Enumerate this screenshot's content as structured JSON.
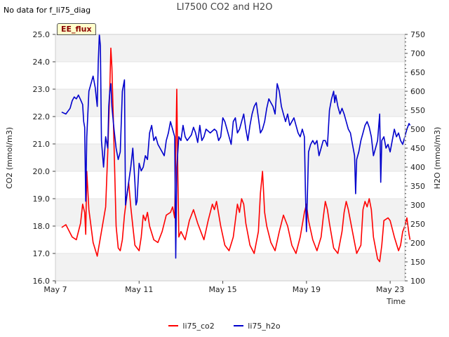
{
  "header": {
    "status_text": "No data for f_li75_diag",
    "title": "LI7500 CO2 and H2O",
    "badge": "EE_flux"
  },
  "chart_data": {
    "type": "line",
    "title": "LI7500 CO2 and H2O",
    "xlabel": "Time",
    "ylabel_left": "CO2 (mmol/m3)",
    "ylabel_right": "H2O (mmol/m3)",
    "x_range_days": [
      7,
      23.7
    ],
    "ylim_left": [
      16.0,
      25.0
    ],
    "ylim_right": [
      100,
      750
    ],
    "x_ticks": [
      {
        "label": "May 7",
        "day": 7
      },
      {
        "label": "May 11",
        "day": 11
      },
      {
        "label": "May 15",
        "day": 15
      },
      {
        "label": "May 19",
        "day": 19
      },
      {
        "label": "May 23",
        "day": 23
      }
    ],
    "y_ticks_left": [
      "16.0",
      "17.0",
      "18.0",
      "19.0",
      "20.0",
      "21.0",
      "22.0",
      "23.0",
      "24.0",
      "25.0"
    ],
    "y_ticks_right": [
      "100",
      "150",
      "200",
      "250",
      "300",
      "350",
      "400",
      "450",
      "500",
      "550",
      "600",
      "650",
      "700",
      "750"
    ],
    "series": [
      {
        "name": "li75_co2",
        "axis": "left",
        "color": "#ff0000",
        "points": [
          [
            7.3,
            17.95
          ],
          [
            7.5,
            18.05
          ],
          [
            7.6,
            17.9
          ],
          [
            7.8,
            17.6
          ],
          [
            8.0,
            17.5
          ],
          [
            8.2,
            18.1
          ],
          [
            8.3,
            18.8
          ],
          [
            8.4,
            18.5
          ],
          [
            8.45,
            17.7
          ],
          [
            8.5,
            20.0
          ],
          [
            8.6,
            18.6
          ],
          [
            8.8,
            17.4
          ],
          [
            9.0,
            16.9
          ],
          [
            9.2,
            17.8
          ],
          [
            9.4,
            18.7
          ],
          [
            9.5,
            20.7
          ],
          [
            9.6,
            23.0
          ],
          [
            9.65,
            24.5
          ],
          [
            9.7,
            23.8
          ],
          [
            9.8,
            21.0
          ],
          [
            9.9,
            18.0
          ],
          [
            10.0,
            17.2
          ],
          [
            10.1,
            17.1
          ],
          [
            10.2,
            17.5
          ],
          [
            10.3,
            18.4
          ],
          [
            10.4,
            19.0
          ],
          [
            10.5,
            19.6
          ],
          [
            10.6,
            18.7
          ],
          [
            10.7,
            18.0
          ],
          [
            10.8,
            17.3
          ],
          [
            11.0,
            17.1
          ],
          [
            11.1,
            17.6
          ],
          [
            11.2,
            18.4
          ],
          [
            11.3,
            18.2
          ],
          [
            11.4,
            18.5
          ],
          [
            11.5,
            18.0
          ],
          [
            11.7,
            17.5
          ],
          [
            11.9,
            17.4
          ],
          [
            12.1,
            17.8
          ],
          [
            12.3,
            18.4
          ],
          [
            12.5,
            18.5
          ],
          [
            12.6,
            18.7
          ],
          [
            12.7,
            18.3
          ],
          [
            12.8,
            23.0
          ],
          [
            12.85,
            20.0
          ],
          [
            12.9,
            17.6
          ],
          [
            13.0,
            17.8
          ],
          [
            13.2,
            17.5
          ],
          [
            13.4,
            18.2
          ],
          [
            13.6,
            18.6
          ],
          [
            13.8,
            18.1
          ],
          [
            14.0,
            17.7
          ],
          [
            14.1,
            17.5
          ],
          [
            14.3,
            18.2
          ],
          [
            14.5,
            18.8
          ],
          [
            14.6,
            18.6
          ],
          [
            14.7,
            18.9
          ],
          [
            14.9,
            18.0
          ],
          [
            15.1,
            17.3
          ],
          [
            15.3,
            17.1
          ],
          [
            15.5,
            17.6
          ],
          [
            15.6,
            18.2
          ],
          [
            15.7,
            18.8
          ],
          [
            15.8,
            18.5
          ],
          [
            15.9,
            19.0
          ],
          [
            16.0,
            18.8
          ],
          [
            16.1,
            18.1
          ],
          [
            16.3,
            17.3
          ],
          [
            16.5,
            17.0
          ],
          [
            16.7,
            17.8
          ],
          [
            16.8,
            19.2
          ],
          [
            16.9,
            20.0
          ],
          [
            17.0,
            18.5
          ],
          [
            17.1,
            18.0
          ],
          [
            17.3,
            17.4
          ],
          [
            17.5,
            17.1
          ],
          [
            17.7,
            17.8
          ],
          [
            17.9,
            18.4
          ],
          [
            18.1,
            18.0
          ],
          [
            18.3,
            17.3
          ],
          [
            18.5,
            17.0
          ],
          [
            18.7,
            17.6
          ],
          [
            18.9,
            18.5
          ],
          [
            19.0,
            18.8
          ],
          [
            19.1,
            18.2
          ],
          [
            19.3,
            17.5
          ],
          [
            19.5,
            17.1
          ],
          [
            19.7,
            17.6
          ],
          [
            19.8,
            18.3
          ],
          [
            19.9,
            18.9
          ],
          [
            20.0,
            18.6
          ],
          [
            20.1,
            18.1
          ],
          [
            20.3,
            17.2
          ],
          [
            20.5,
            17.0
          ],
          [
            20.7,
            17.8
          ],
          [
            20.8,
            18.5
          ],
          [
            20.9,
            18.9
          ],
          [
            21.0,
            18.6
          ],
          [
            21.2,
            17.8
          ],
          [
            21.4,
            17.0
          ],
          [
            21.6,
            17.3
          ],
          [
            21.7,
            18.6
          ],
          [
            21.8,
            18.9
          ],
          [
            21.9,
            18.7
          ],
          [
            22.0,
            19.0
          ],
          [
            22.1,
            18.6
          ],
          [
            22.2,
            17.6
          ],
          [
            22.4,
            16.8
          ],
          [
            22.5,
            16.7
          ],
          [
            22.6,
            17.3
          ],
          [
            22.7,
            18.2
          ],
          [
            22.9,
            18.3
          ],
          [
            23.0,
            18.2
          ],
          [
            23.2,
            17.6
          ],
          [
            23.4,
            17.1
          ],
          [
            23.5,
            17.3
          ],
          [
            23.6,
            17.8
          ],
          [
            23.7,
            18.0
          ],
          [
            23.8,
            18.3
          ],
          [
            23.9,
            17.7
          ],
          [
            23.95,
            17.5
          ]
        ]
      },
      {
        "name": "li75_h2o",
        "axis": "right",
        "color": "#0000cc",
        "points": [
          [
            7.3,
            545
          ],
          [
            7.5,
            540
          ],
          [
            7.7,
            555
          ],
          [
            7.8,
            575
          ],
          [
            7.9,
            585
          ],
          [
            8.0,
            580
          ],
          [
            8.1,
            590
          ],
          [
            8.2,
            578
          ],
          [
            8.3,
            565
          ],
          [
            8.35,
            520
          ],
          [
            8.4,
            505
          ],
          [
            8.45,
            310
          ],
          [
            8.5,
            480
          ],
          [
            8.6,
            600
          ],
          [
            8.7,
            620
          ],
          [
            8.8,
            640
          ],
          [
            8.9,
            610
          ],
          [
            9.0,
            560
          ],
          [
            9.05,
            680
          ],
          [
            9.1,
            750
          ],
          [
            9.15,
            720
          ],
          [
            9.2,
            470
          ],
          [
            9.3,
            400
          ],
          [
            9.4,
            480
          ],
          [
            9.5,
            450
          ],
          [
            9.55,
            560
          ],
          [
            9.6,
            600
          ],
          [
            9.65,
            620
          ],
          [
            9.7,
            560
          ],
          [
            9.8,
            500
          ],
          [
            9.9,
            450
          ],
          [
            10.0,
            420
          ],
          [
            10.1,
            440
          ],
          [
            10.2,
            600
          ],
          [
            10.3,
            630
          ],
          [
            10.35,
            300
          ],
          [
            10.4,
            320
          ],
          [
            10.5,
            360
          ],
          [
            10.6,
            400
          ],
          [
            10.7,
            450
          ],
          [
            10.8,
            360
          ],
          [
            10.85,
            300
          ],
          [
            10.9,
            310
          ],
          [
            11.0,
            410
          ],
          [
            11.1,
            390
          ],
          [
            11.2,
            400
          ],
          [
            11.3,
            430
          ],
          [
            11.4,
            420
          ],
          [
            11.5,
            490
          ],
          [
            11.6,
            510
          ],
          [
            11.7,
            470
          ],
          [
            11.8,
            480
          ],
          [
            11.9,
            460
          ],
          [
            12.0,
            450
          ],
          [
            12.2,
            430
          ],
          [
            12.3,
            470
          ],
          [
            12.4,
            490
          ],
          [
            12.5,
            520
          ],
          [
            12.6,
            500
          ],
          [
            12.7,
            480
          ],
          [
            12.75,
            160
          ],
          [
            12.8,
            400
          ],
          [
            12.9,
            480
          ],
          [
            13.0,
            470
          ],
          [
            13.1,
            510
          ],
          [
            13.2,
            480
          ],
          [
            13.3,
            470
          ],
          [
            13.5,
            485
          ],
          [
            13.6,
            505
          ],
          [
            13.7,
            490
          ],
          [
            13.8,
            465
          ],
          [
            13.9,
            510
          ],
          [
            14.0,
            470
          ],
          [
            14.1,
            480
          ],
          [
            14.2,
            500
          ],
          [
            14.4,
            490
          ],
          [
            14.6,
            500
          ],
          [
            14.7,
            495
          ],
          [
            14.8,
            470
          ],
          [
            14.9,
            480
          ],
          [
            15.0,
            530
          ],
          [
            15.1,
            520
          ],
          [
            15.2,
            500
          ],
          [
            15.3,
            480
          ],
          [
            15.4,
            460
          ],
          [
            15.5,
            520
          ],
          [
            15.6,
            530
          ],
          [
            15.7,
            490
          ],
          [
            15.8,
            500
          ],
          [
            15.9,
            520
          ],
          [
            16.0,
            540
          ],
          [
            16.1,
            500
          ],
          [
            16.2,
            470
          ],
          [
            16.3,
            510
          ],
          [
            16.4,
            540
          ],
          [
            16.5,
            560
          ],
          [
            16.6,
            570
          ],
          [
            16.7,
            530
          ],
          [
            16.8,
            490
          ],
          [
            16.9,
            500
          ],
          [
            17.0,
            520
          ],
          [
            17.1,
            555
          ],
          [
            17.2,
            580
          ],
          [
            17.3,
            570
          ],
          [
            17.4,
            560
          ],
          [
            17.5,
            540
          ],
          [
            17.6,
            620
          ],
          [
            17.7,
            600
          ],
          [
            17.8,
            560
          ],
          [
            17.9,
            540
          ],
          [
            18.0,
            520
          ],
          [
            18.1,
            540
          ],
          [
            18.2,
            510
          ],
          [
            18.3,
            520
          ],
          [
            18.4,
            530
          ],
          [
            18.5,
            510
          ],
          [
            18.6,
            490
          ],
          [
            18.7,
            480
          ],
          [
            18.8,
            500
          ],
          [
            18.9,
            480
          ],
          [
            18.95,
            330
          ],
          [
            19.0,
            230
          ],
          [
            19.1,
            440
          ],
          [
            19.2,
            460
          ],
          [
            19.3,
            470
          ],
          [
            19.4,
            460
          ],
          [
            19.5,
            470
          ],
          [
            19.6,
            430
          ],
          [
            19.7,
            450
          ],
          [
            19.8,
            470
          ],
          [
            19.9,
            470
          ],
          [
            20.0,
            455
          ],
          [
            20.1,
            550
          ],
          [
            20.2,
            580
          ],
          [
            20.3,
            600
          ],
          [
            20.35,
            570
          ],
          [
            20.4,
            590
          ],
          [
            20.5,
            560
          ],
          [
            20.6,
            540
          ],
          [
            20.7,
            555
          ],
          [
            20.8,
            540
          ],
          [
            20.9,
            520
          ],
          [
            21.0,
            500
          ],
          [
            21.1,
            490
          ],
          [
            21.2,
            460
          ],
          [
            21.3,
            430
          ],
          [
            21.35,
            330
          ],
          [
            21.4,
            420
          ],
          [
            21.5,
            440
          ],
          [
            21.6,
            470
          ],
          [
            21.7,
            490
          ],
          [
            21.8,
            510
          ],
          [
            21.9,
            520
          ],
          [
            22.0,
            505
          ],
          [
            22.1,
            480
          ],
          [
            22.2,
            430
          ],
          [
            22.3,
            450
          ],
          [
            22.4,
            470
          ],
          [
            22.5,
            540
          ],
          [
            22.55,
            360
          ],
          [
            22.6,
            470
          ],
          [
            22.7,
            480
          ],
          [
            22.8,
            450
          ],
          [
            22.9,
            460
          ],
          [
            23.0,
            440
          ],
          [
            23.1,
            470
          ],
          [
            23.2,
            500
          ],
          [
            23.3,
            480
          ],
          [
            23.4,
            490
          ],
          [
            23.5,
            470
          ],
          [
            23.6,
            460
          ],
          [
            23.7,
            480
          ],
          [
            23.8,
            500
          ],
          [
            23.9,
            515
          ],
          [
            23.95,
            510
          ]
        ]
      }
    ]
  }
}
